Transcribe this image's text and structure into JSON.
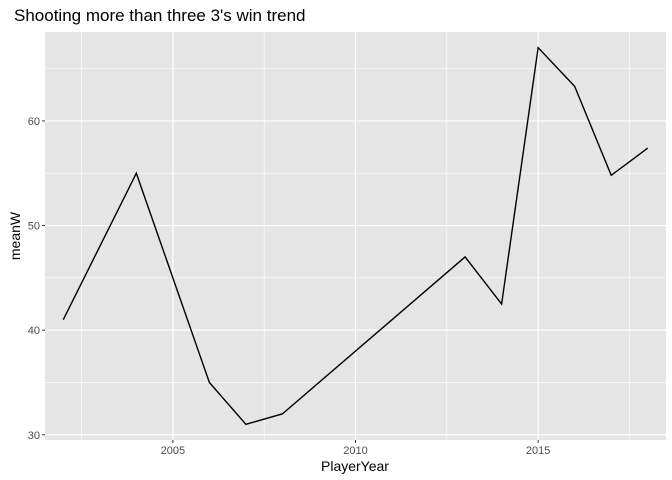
{
  "chart_data": {
    "type": "line",
    "title": "Shooting more than three 3's win trend",
    "xlabel": "PlayerYear",
    "ylabel": "meanW",
    "x": [
      2002,
      2004,
      2006,
      2007,
      2008,
      2013,
      2014,
      2015,
      2016,
      2017,
      2018
    ],
    "y": [
      41,
      55,
      35,
      31,
      32,
      47,
      42.5,
      67,
      63.3,
      54.8,
      57.4
    ],
    "xlim": [
      2001.5,
      2018.5
    ],
    "ylim": [
      29.5,
      68.5
    ],
    "xticks": [
      2005,
      2010,
      2015
    ],
    "xtick_labels": [
      "2005",
      "2010",
      "2015"
    ],
    "xminor": [
      2002.5,
      2007.5,
      2012.5,
      2017.5
    ],
    "yticks": [
      30,
      40,
      50,
      60
    ],
    "ytick_labels": [
      "30",
      "40",
      "50",
      "60"
    ],
    "yminor": [
      35,
      45,
      55,
      65
    ],
    "grid": true,
    "colors": {
      "panel": "#e5e5e5",
      "grid": "#ffffff",
      "line": "#000000",
      "tick_text": "#4d4d4d"
    }
  }
}
